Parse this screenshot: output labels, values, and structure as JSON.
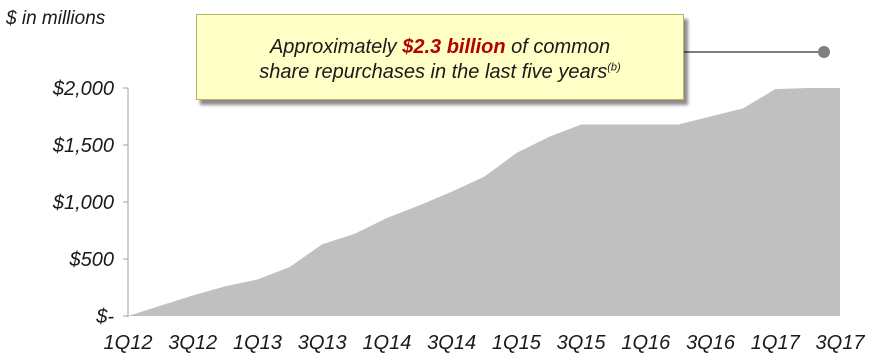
{
  "unit_label": "$ in millions",
  "callout": {
    "line1_pre": "Approximately ",
    "highlight": "$2.3 billion",
    "line1_post": " of common",
    "line2": "share repurchases in the last five years",
    "footnote": "(b)"
  },
  "colors": {
    "area": "#c0c0c0",
    "axis": "#a0a0a0",
    "text": "#1a1a1a",
    "highlight": "#b40000",
    "callout_bg": "#ffffc6",
    "leader": "#7f7f7f"
  },
  "chart_data": {
    "type": "area",
    "x": [
      "1Q12",
      "2Q12",
      "3Q12",
      "4Q12",
      "1Q13",
      "2Q13",
      "3Q13",
      "4Q13",
      "1Q14",
      "2Q14",
      "3Q14",
      "4Q14",
      "1Q15",
      "2Q15",
      "3Q15",
      "4Q15",
      "1Q16",
      "2Q16",
      "3Q16",
      "4Q16",
      "1Q17",
      "2Q17",
      "3Q17"
    ],
    "xtick_labels": [
      "1Q12",
      "3Q12",
      "1Q13",
      "3Q13",
      "1Q14",
      "3Q14",
      "1Q15",
      "3Q15",
      "1Q16",
      "3Q16",
      "1Q17",
      "3Q17"
    ],
    "values": [
      0,
      90,
      180,
      260,
      320,
      430,
      630,
      720,
      860,
      970,
      1090,
      1220,
      1430,
      1570,
      1680,
      1680,
      1680,
      1680,
      1750,
      1820,
      1990,
      2000,
      2000
    ],
    "yticks": [
      0,
      500,
      1000,
      1500,
      2000
    ],
    "ytick_labels": [
      "$-",
      "$500",
      "$1,000",
      "$1,500",
      "$2,000"
    ],
    "ylim": [
      0,
      2000
    ],
    "ylabel": "$ in millions",
    "grid": false,
    "legend": "none"
  }
}
